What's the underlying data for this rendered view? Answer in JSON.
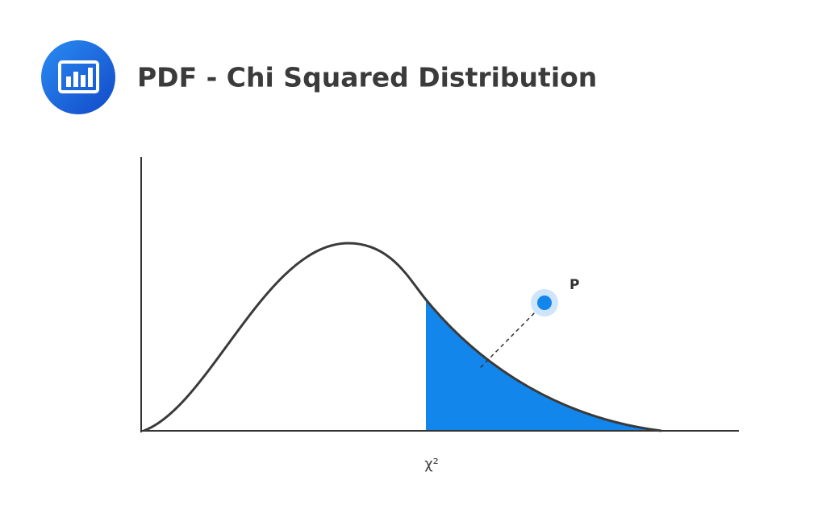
{
  "header": {
    "title": "PDF - Chi Squared Distribution"
  },
  "diagram": {
    "point_label": "P",
    "x_axis_label": "χ²"
  }
}
